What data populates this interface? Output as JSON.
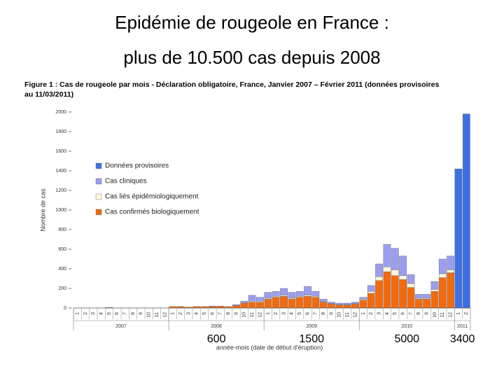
{
  "slide": {
    "title_lines": [
      "Epidémie de rougeole en France :",
      "plus de 10.500 cas depuis 2008"
    ]
  },
  "chart_data": {
    "type": "stacked_bar",
    "title_lines": [
      "Figure 1 : Cas de rougeole par mois - Déclaration obligatoire, France, Janvier 2007 – Février 2011 (données provisoires",
      "au 11/03/2011)"
    ],
    "y_label": "Nombre de cas",
    "x_label": "année-mois (date de début d'éruption)",
    "categories": [
      "1",
      "2",
      "3",
      "4",
      "5",
      "6",
      "7",
      "8",
      "9",
      "10",
      "11",
      "12",
      "1",
      "2",
      "3",
      "4",
      "5",
      "6",
      "7",
      "8",
      "9",
      "10",
      "11",
      "12",
      "1",
      "2",
      "3",
      "4",
      "5",
      "6",
      "7",
      "8",
      "9",
      "10",
      "11",
      "12",
      "1",
      "2",
      "3",
      "4",
      "5",
      "6",
      "7",
      "8",
      "9",
      "10",
      "11",
      "12",
      "1",
      "2"
    ],
    "x_groups": [
      "2007",
      "2008",
      "2009",
      "2010",
      "2011"
    ],
    "annotations": [
      "600",
      "1500",
      "5000",
      "3400"
    ],
    "series": [
      {
        "name": "Cas confirmés biologiquement",
        "color": "#f26a10",
        "values": [
          0,
          0,
          0,
          0,
          5,
          0,
          0,
          0,
          0,
          0,
          0,
          0,
          15,
          15,
          10,
          15,
          15,
          15,
          20,
          15,
          25,
          50,
          60,
          60,
          90,
          110,
          120,
          90,
          110,
          120,
          110,
          60,
          40,
          30,
          30,
          40,
          80,
          150,
          280,
          370,
          330,
          290,
          210,
          90,
          90,
          170,
          310,
          360,
          0,
          0
        ]
      },
      {
        "name": "Cas liés épidémiologiquement",
        "color": "#fdf6d8",
        "values": [
          0,
          0,
          0,
          0,
          0,
          0,
          0,
          0,
          0,
          0,
          0,
          0,
          0,
          0,
          0,
          0,
          0,
          0,
          0,
          0,
          0,
          5,
          10,
          10,
          10,
          10,
          10,
          10,
          10,
          10,
          10,
          5,
          5,
          5,
          5,
          5,
          10,
          20,
          40,
          50,
          60,
          40,
          40,
          10,
          10,
          20,
          40,
          30,
          0,
          0
        ]
      },
      {
        "name": "Cas cliniques",
        "color": "#9b9ef0",
        "values": [
          0,
          0,
          0,
          0,
          0,
          0,
          0,
          0,
          0,
          0,
          0,
          0,
          0,
          0,
          0,
          0,
          0,
          5,
          0,
          0,
          10,
          15,
          60,
          40,
          60,
          50,
          70,
          60,
          50,
          90,
          50,
          25,
          15,
          15,
          15,
          15,
          20,
          60,
          130,
          230,
          220,
          200,
          90,
          40,
          40,
          80,
          150,
          140,
          0,
          0
        ]
      },
      {
        "name": "Données provisoires",
        "color": "#3d6fe3",
        "values": [
          0,
          0,
          0,
          0,
          0,
          0,
          0,
          0,
          0,
          0,
          0,
          0,
          0,
          0,
          0,
          0,
          0,
          0,
          0,
          0,
          0,
          0,
          0,
          0,
          0,
          0,
          0,
          0,
          0,
          0,
          0,
          0,
          0,
          0,
          0,
          0,
          0,
          0,
          0,
          0,
          0,
          0,
          0,
          0,
          0,
          0,
          0,
          0,
          1420,
          1980
        ]
      }
    ],
    "ylim": [
      0,
      2000
    ],
    "yticks": [
      0,
      200,
      400,
      600,
      800,
      1000,
      1200,
      1400,
      1600,
      1800,
      2000
    ]
  }
}
